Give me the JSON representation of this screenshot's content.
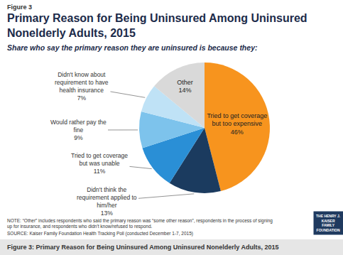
{
  "chart_data": {
    "type": "pie",
    "title": "Primary Reason for Being Uninsured Among Uninsured Nonelderly Adults, 2015",
    "subtitle": "Share who say the primary reason they are uninsured is because they:",
    "categories": [
      "Tried to get coverage but too expensive",
      "Didn't think the requirement applied to him/her",
      "Tried to get coverage but was unable",
      "Would rather pay the fine",
      "Didn't know about requirement to have health insurance",
      "Other"
    ],
    "values": [
      46,
      13,
      11,
      9,
      7,
      14
    ],
    "value_labels": [
      "46%",
      "13%",
      "11%",
      "9%",
      "7%",
      "14%"
    ],
    "colors": [
      "#F7941E",
      "#1B3B5F",
      "#2A8FD6",
      "#7DC3EC",
      "#BFE2F6",
      "#D9D9D9"
    ],
    "data_labels": true,
    "annotations": [
      "Figure 3",
      "NOTE: “Other” includes respondents who said the primary reason was “some other reason”, respondents in the process of signing up for insurance, and respondents who didn't know/refused to respond.",
      "SOURCE: Kaiser Family Foundation Health Tracking Poll (conducted December 1-7, 2015)",
      "THE HENRY J. KAISER FAMILY FOUNDATION",
      "Figure 3: Primary Reason for Being Uninsured Among Uninsured Nonelderly Adults, 2015"
    ]
  }
}
